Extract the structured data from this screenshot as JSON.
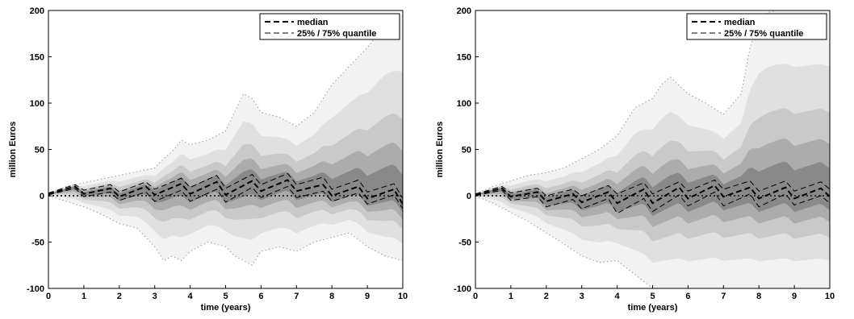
{
  "chart_data": [
    {
      "type": "line",
      "xlabel": "time (years)",
      "ylabel": "million Euros",
      "xlim": [
        0,
        10
      ],
      "ylim": [
        -100,
        200
      ],
      "xticks": [
        0,
        1,
        2,
        3,
        4,
        5,
        6,
        7,
        8,
        9,
        10
      ],
      "yticks": [
        -100,
        -50,
        0,
        50,
        100,
        150,
        200
      ],
      "grid": false,
      "legend": {
        "position": "top-right",
        "entries": [
          "median",
          "25% / 75% quantile"
        ]
      },
      "series": [
        {
          "name": "median",
          "x": [
            0,
            0.75,
            1,
            1.75,
            2,
            2.75,
            3,
            3.75,
            4,
            4.75,
            5,
            5.75,
            6,
            6.75,
            7,
            7.75,
            8,
            8.75,
            9,
            9.75,
            10
          ],
          "y": [
            2,
            10,
            2,
            8,
            -1,
            10,
            1,
            13,
            2,
            15,
            1,
            16,
            5,
            17,
            5,
            12,
            0,
            10,
            -3,
            7,
            -9
          ]
        },
        {
          "name": "25% / 75% quantile",
          "x": [
            0,
            0.75,
            1,
            1.75,
            2,
            2.75,
            3,
            3.75,
            4,
            4.75,
            5,
            5.75,
            6,
            6.75,
            7,
            7.75,
            8,
            8.75,
            9,
            9.75,
            10
          ],
          "y": [
            3,
            12,
            6,
            12,
            4,
            15,
            7,
            19,
            9,
            22,
            8,
            23,
            12,
            24,
            12,
            20,
            7,
            17,
            4,
            13,
            -3
          ]
        },
        {
          "name": "25% / 75% quantile",
          "x": [
            0,
            0.75,
            1,
            1.75,
            2,
            2.75,
            3,
            3.75,
            4,
            4.75,
            5,
            5.75,
            6,
            6.75,
            7,
            7.75,
            8,
            8.75,
            9,
            9.75,
            10
          ],
          "y": [
            1,
            8,
            -1,
            4,
            -5,
            4,
            -6,
            6,
            -6,
            7,
            -7,
            9,
            -2,
            10,
            -2,
            5,
            -6,
            3,
            -9,
            1,
            -14
          ]
        }
      ],
      "outer_bounds": {
        "x": [
          0,
          0.5,
          1,
          1.5,
          2,
          2.5,
          3,
          3.25,
          3.5,
          3.75,
          4,
          4.5,
          5,
          5.25,
          5.5,
          5.75,
          6,
          6.5,
          7,
          7.5,
          8,
          8.5,
          9,
          9.5,
          10
        ],
        "upper": [
          2,
          10,
          14,
          18,
          22,
          26,
          30,
          40,
          48,
          60,
          55,
          60,
          70,
          90,
          110,
          105,
          90,
          85,
          75,
          90,
          120,
          140,
          160,
          185,
          195
        ],
        "lower": [
          0,
          -6,
          -12,
          -20,
          -30,
          -35,
          -55,
          -70,
          -65,
          -70,
          -60,
          -50,
          -55,
          -65,
          -70,
          -75,
          -60,
          -55,
          -60,
          -50,
          -45,
          -40,
          -55,
          -65,
          -70
        ]
      },
      "zero_line": 0
    },
    {
      "type": "line",
      "xlabel": "time (years)",
      "ylabel": "million Euros",
      "xlim": [
        0,
        10
      ],
      "ylim": [
        -100,
        200
      ],
      "xticks": [
        0,
        1,
        2,
        3,
        4,
        5,
        6,
        7,
        8,
        9,
        10
      ],
      "yticks": [
        -100,
        -50,
        0,
        50,
        100,
        150,
        200
      ],
      "grid": false,
      "legend": {
        "position": "top-right",
        "entries": [
          "median",
          "25% / 75% quantile"
        ]
      },
      "series": [
        {
          "name": "median",
          "x": [
            0,
            0.75,
            1,
            1.75,
            2,
            2.75,
            3,
            3.75,
            4,
            4.75,
            5,
            5.75,
            6,
            6.75,
            7,
            7.75,
            8,
            8.75,
            9,
            9.75,
            10
          ],
          "y": [
            1,
            8,
            -1,
            4,
            -6,
            2,
            -7,
            4,
            -8,
            7,
            -8,
            9,
            -3,
            11,
            -1,
            9,
            -3,
            9,
            -3,
            8,
            -1
          ]
        },
        {
          "name": "25% / 75% quantile",
          "x": [
            0,
            0.75,
            1,
            1.75,
            2,
            2.75,
            3,
            3.75,
            4,
            4.75,
            5,
            5.75,
            6,
            6.75,
            7,
            7.75,
            8,
            8.75,
            9,
            9.75,
            10
          ],
          "y": [
            2,
            10,
            3,
            8,
            0,
            7,
            0,
            11,
            2,
            14,
            2,
            15,
            5,
            17,
            7,
            16,
            5,
            16,
            5,
            15,
            7
          ]
        },
        {
          "name": "25% / 75% quantile",
          "x": [
            0,
            0.75,
            1,
            1.75,
            2,
            2.75,
            3,
            3.75,
            4,
            4.75,
            5,
            5.75,
            6,
            6.75,
            7,
            7.75,
            8,
            8.75,
            9,
            9.75,
            10
          ],
          "y": [
            0,
            6,
            -5,
            -1,
            -12,
            -4,
            -14,
            -3,
            -19,
            -3,
            -17,
            1,
            -11,
            4,
            -11,
            2,
            -12,
            2,
            -10,
            0,
            -8
          ]
        }
      ],
      "outer_bounds": {
        "x": [
          0,
          0.5,
          1,
          1.5,
          2,
          2.5,
          3,
          3.5,
          4,
          4.5,
          5,
          5.25,
          5.5,
          6,
          6.5,
          7,
          7.5,
          7.75,
          8,
          8.25,
          8.5,
          9,
          9.5,
          10
        ],
        "upper": [
          2,
          10,
          16,
          22,
          25,
          30,
          40,
          50,
          65,
          95,
          105,
          120,
          128,
          110,
          100,
          88,
          110,
          160,
          190,
          198,
          200,
          200,
          200,
          200
        ],
        "lower": [
          0,
          -8,
          -18,
          -28,
          -40,
          -52,
          -65,
          -72,
          -70,
          -85,
          -100,
          -100,
          -100,
          -100,
          -100,
          -100,
          -100,
          -100,
          -100,
          -100,
          -100,
          -100,
          -100,
          -100
        ]
      },
      "zero_line": 0
    }
  ]
}
